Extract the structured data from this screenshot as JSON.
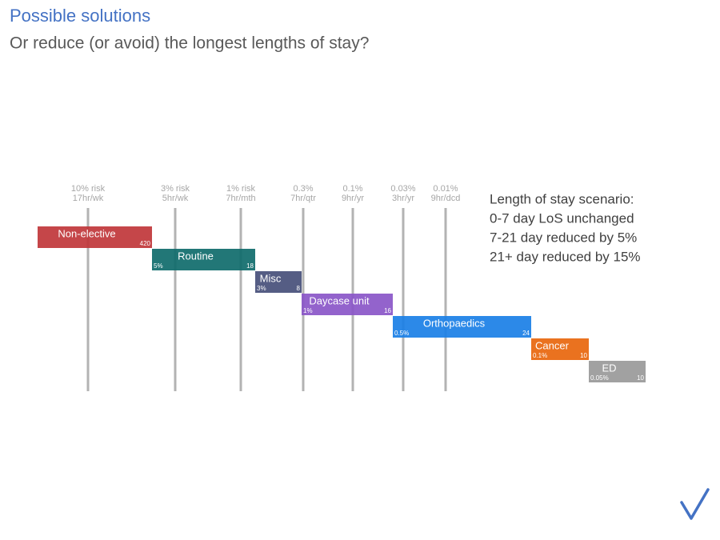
{
  "header": {
    "title": "Possible solutions",
    "subtitle": "Or reduce (or avoid) the longest lengths of stay?"
  },
  "thresholds": [
    {
      "risk": "10% risk",
      "rate": "17hr/wk"
    },
    {
      "risk": "3% risk",
      "rate": "5hr/wk"
    },
    {
      "risk": "1% risk",
      "rate": "7hr/mth"
    },
    {
      "risk": "0.3%",
      "rate": "7hr/qtr"
    },
    {
      "risk": "0.1%",
      "rate": "9hr/yr"
    },
    {
      "risk": "0.03%",
      "rate": "3hr/yr"
    },
    {
      "risk": "0.01%",
      "rate": "9hr/dcd"
    }
  ],
  "bars": [
    {
      "label": "Non-elective",
      "right": "420"
    },
    {
      "label": "Routine",
      "left": "5%",
      "right": "18"
    },
    {
      "label": "Misc",
      "left": "3%",
      "right": "8"
    },
    {
      "label": "Daycase unit",
      "left": "1%",
      "right": "16"
    },
    {
      "label": "Orthopaedics",
      "left": "0.5%",
      "right": "24"
    },
    {
      "label": "Cancer",
      "left": "0.1%",
      "right": "10"
    },
    {
      "label": "ED",
      "left": "0.05%",
      "right": "10"
    }
  ],
  "scenario": [
    "Length of stay scenario:",
    "0-7 day LoS unchanged",
    "7-21 day reduced by 5%",
    "21+ day reduced by 15%"
  ]
}
